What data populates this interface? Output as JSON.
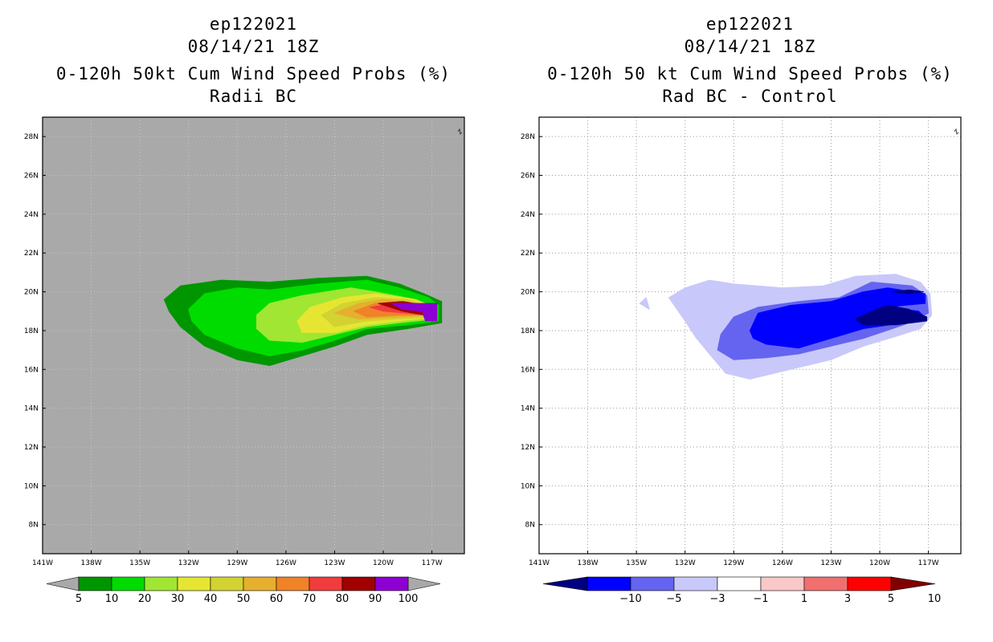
{
  "chart_data": [
    {
      "type": "contour-map",
      "storm": "ep122021",
      "date": "08/14/21 18Z",
      "title": "0-120h 50kt Cum Wind Speed Probs (%)",
      "subtitle": "Radii BC",
      "xlim": [
        -141,
        -115
      ],
      "ylim": [
        6.5,
        29
      ],
      "xticks": [
        "141W",
        "138W",
        "135W",
        "132W",
        "129W",
        "126W",
        "123W",
        "120W",
        "117W"
      ],
      "yticks": [
        "8N",
        "10N",
        "12N",
        "14N",
        "16N",
        "18N",
        "20N",
        "22N",
        "24N",
        "26N",
        "28N"
      ],
      "colorbar": {
        "levels": [
          "5",
          "10",
          "20",
          "30",
          "40",
          "50",
          "60",
          "70",
          "80",
          "90",
          "100"
        ],
        "colors": [
          "#009600",
          "#00dc00",
          "#a0e632",
          "#e6e632",
          "#d2d232",
          "#e6af2d",
          "#f08228",
          "#f03c3c",
          "#a00000",
          "#8c00d2"
        ]
      },
      "background": "#a9a9a9",
      "contours": [
        {
          "level": "5",
          "color": "#009600",
          "points": [
            [
              -133.5,
              19.6
            ],
            [
              -132.5,
              20.3
            ],
            [
              -130,
              20.6
            ],
            [
              -127,
              20.5
            ],
            [
              -124,
              20.7
            ],
            [
              -121,
              20.8
            ],
            [
              -119,
              20.4
            ],
            [
              -117.5,
              19.9
            ],
            [
              -116.4,
              19.5
            ],
            [
              -116.4,
              18.4
            ],
            [
              -118.5,
              18.1
            ],
            [
              -121,
              17.8
            ],
            [
              -123,
              17.2
            ],
            [
              -125,
              16.7
            ],
            [
              -127,
              16.2
            ],
            [
              -129,
              16.5
            ],
            [
              -131,
              17.2
            ],
            [
              -132.5,
              18.2
            ],
            [
              -133.2,
              19.0
            ]
          ]
        },
        {
          "level": "10",
          "color": "#00dc00",
          "points": [
            [
              -132,
              19.1
            ],
            [
              -131,
              19.9
            ],
            [
              -129,
              20.2
            ],
            [
              -127,
              20.1
            ],
            [
              -124,
              20.4
            ],
            [
              -121,
              20.6
            ],
            [
              -119,
              20.2
            ],
            [
              -117.2,
              19.7
            ],
            [
              -116.6,
              19.3
            ],
            [
              -116.6,
              18.5
            ],
            [
              -118.5,
              18.3
            ],
            [
              -121,
              18.1
            ],
            [
              -123,
              17.5
            ],
            [
              -125,
              17.0
            ],
            [
              -127,
              16.7
            ],
            [
              -129,
              17.1
            ],
            [
              -131,
              17.8
            ],
            [
              -131.8,
              18.5
            ]
          ]
        },
        {
          "level": "20",
          "color": "#a0e632",
          "points": [
            [
              -127.8,
              18.8
            ],
            [
              -127,
              19.4
            ],
            [
              -125,
              19.8
            ],
            [
              -122,
              20.2
            ],
            [
              -120.5,
              20.0
            ],
            [
              -118,
              19.6
            ],
            [
              -116.8,
              19.2
            ],
            [
              -116.8,
              18.6
            ],
            [
              -119,
              18.4
            ],
            [
              -121,
              18.2
            ],
            [
              -123,
              17.8
            ],
            [
              -125,
              17.4
            ],
            [
              -127,
              17.5
            ],
            [
              -127.8,
              18.1
            ]
          ]
        },
        {
          "level": "30",
          "color": "#e6e632",
          "points": [
            [
              -125.3,
              18.5
            ],
            [
              -124.5,
              19.2
            ],
            [
              -122.5,
              19.7
            ],
            [
              -120.5,
              19.9
            ],
            [
              -118,
              19.6
            ],
            [
              -116.9,
              19.2
            ],
            [
              -116.9,
              18.7
            ],
            [
              -119,
              18.5
            ],
            [
              -121,
              18.3
            ],
            [
              -123,
              17.9
            ],
            [
              -125,
              17.9
            ]
          ]
        },
        {
          "level": "40",
          "color": "#d2d232",
          "points": [
            [
              -123.8,
              18.8
            ],
            [
              -122.5,
              19.4
            ],
            [
              -120.5,
              19.7
            ],
            [
              -118.5,
              19.6
            ],
            [
              -117,
              19.2
            ],
            [
              -117,
              18.7
            ],
            [
              -119,
              18.6
            ],
            [
              -121,
              18.5
            ],
            [
              -123,
              18.2
            ]
          ]
        },
        {
          "level": "50",
          "color": "#e6af2d",
          "points": [
            [
              -123,
              18.9
            ],
            [
              -121.5,
              19.4
            ],
            [
              -120,
              19.6
            ],
            [
              -118.5,
              19.5
            ],
            [
              -117.1,
              19.2
            ],
            [
              -117.1,
              18.8
            ],
            [
              -119,
              18.7
            ],
            [
              -121.5,
              18.6
            ]
          ]
        },
        {
          "level": "60",
          "color": "#f08228",
          "points": [
            [
              -121.8,
              19.0
            ],
            [
              -120.5,
              19.4
            ],
            [
              -119,
              19.5
            ],
            [
              -117.3,
              19.3
            ],
            [
              -117.3,
              18.8
            ],
            [
              -119,
              18.8
            ],
            [
              -121,
              18.7
            ]
          ]
        },
        {
          "level": "70",
          "color": "#f03c3c",
          "points": [
            [
              -120.8,
              19.2
            ],
            [
              -119.5,
              19.4
            ],
            [
              -118,
              19.4
            ],
            [
              -117.4,
              19.2
            ],
            [
              -117.4,
              18.8
            ],
            [
              -118.5,
              18.9
            ],
            [
              -120,
              19.0
            ]
          ]
        },
        {
          "level": "80",
          "color": "#a00000",
          "points": [
            [
              -120.3,
              19.4
            ],
            [
              -118.8,
              19.5
            ],
            [
              -117.4,
              19.3
            ],
            [
              -117.4,
              18.8
            ],
            [
              -118.8,
              19.0
            ]
          ]
        },
        {
          "level": "90",
          "color": "#8c00d2",
          "points": [
            [
              -119.5,
              19.4
            ],
            [
              -117.4,
              19.4
            ],
            [
              -116.7,
              19.4
            ],
            [
              -116.7,
              18.5
            ],
            [
              -117.4,
              18.5
            ],
            [
              -117.6,
              19.0
            ],
            [
              -118.8,
              19.1
            ]
          ]
        }
      ]
    },
    {
      "type": "contour-map",
      "storm": "ep122021",
      "date": "08/14/21 18Z",
      "title": "0-120h 50 kt Cum Wind Speed Probs (%)",
      "subtitle": "Rad BC - Control",
      "xlim": [
        -141,
        -115
      ],
      "ylim": [
        6.5,
        29
      ],
      "xticks": [
        "141W",
        "138W",
        "135W",
        "132W",
        "129W",
        "126W",
        "123W",
        "120W",
        "117W"
      ],
      "yticks": [
        "8N",
        "10N",
        "12N",
        "14N",
        "16N",
        "18N",
        "20N",
        "22N",
        "24N",
        "26N",
        "28N"
      ],
      "colorbar": {
        "levels": [
          "-10",
          "-5",
          "-3",
          "-1",
          "1",
          "3",
          "5",
          "10"
        ],
        "colors": [
          "#000080",
          "#0000ff",
          "#6464f0",
          "#c8c8fa",
          "#ffffff",
          "#fac8c8",
          "#f07070",
          "#ff0000",
          "#800000"
        ]
      },
      "background": "#ffffff",
      "contours": [
        {
          "level": "-1",
          "color": "#c8c8fa",
          "points": [
            [
              -133,
              19.7
            ],
            [
              -132,
              20.2
            ],
            [
              -130.5,
              20.6
            ],
            [
              -129,
              20.4
            ],
            [
              -126,
              20.2
            ],
            [
              -123.5,
              20.3
            ],
            [
              -121.5,
              20.8
            ],
            [
              -119,
              20.9
            ],
            [
              -117.5,
              20.5
            ],
            [
              -116.9,
              19.9
            ],
            [
              -116.8,
              18.8
            ],
            [
              -117.5,
              18.1
            ],
            [
              -119,
              17.7
            ],
            [
              -121,
              17.2
            ],
            [
              -123,
              16.5
            ],
            [
              -125.5,
              16.0
            ],
            [
              -128,
              15.5
            ],
            [
              -129.5,
              15.8
            ],
            [
              -130.5,
              16.8
            ],
            [
              -131.3,
              17.6
            ],
            [
              -132,
              18.5
            ]
          ]
        },
        {
          "level": "-1",
          "color": "#c8c8fa",
          "points": [
            [
              -134.8,
              19.4
            ],
            [
              -134.2,
              19.1
            ],
            [
              -134.4,
              19.7
            ]
          ]
        },
        {
          "level": "-3",
          "color": "#6464f0",
          "points": [
            [
              -129.8,
              17.8
            ],
            [
              -129,
              18.7
            ],
            [
              -127.5,
              19.2
            ],
            [
              -125,
              19.5
            ],
            [
              -122.5,
              19.7
            ],
            [
              -120.5,
              20.5
            ],
            [
              -118,
              20.3
            ],
            [
              -117.1,
              19.8
            ],
            [
              -117,
              18.9
            ],
            [
              -118.5,
              18.3
            ],
            [
              -121,
              17.6
            ],
            [
              -123,
              17.2
            ],
            [
              -125,
              16.8
            ],
            [
              -127,
              16.6
            ],
            [
              -129,
              16.5
            ],
            [
              -130,
              17.0
            ]
          ]
        },
        {
          "level": "-5",
          "color": "#0000ff",
          "points": [
            [
              -128,
              18.0
            ],
            [
              -127.5,
              18.9
            ],
            [
              -125.5,
              19.3
            ],
            [
              -123,
              19.5
            ],
            [
              -121,
              20.0
            ],
            [
              -119.5,
              20.2
            ],
            [
              -117.2,
              19.9
            ],
            [
              -117.2,
              19.4
            ],
            [
              -118.5,
              19.3
            ],
            [
              -119.5,
              19.2
            ],
            [
              -117.6,
              19.0
            ],
            [
              -117.1,
              18.6
            ],
            [
              -118.5,
              18.4
            ],
            [
              -121,
              18.1
            ],
            [
              -123,
              17.6
            ],
            [
              -125,
              17.1
            ],
            [
              -127,
              17.3
            ],
            [
              -127.8,
              17.6
            ]
          ]
        },
        {
          "level": "-10",
          "color": "#000080",
          "points": [
            [
              -121.5,
              18.6
            ],
            [
              -120.5,
              19.0
            ],
            [
              -119.5,
              19.3
            ],
            [
              -118.2,
              19.1
            ],
            [
              -117.1,
              18.7
            ],
            [
              -117.1,
              18.5
            ],
            [
              -119,
              18.3
            ],
            [
              -121,
              18.3
            ]
          ]
        },
        {
          "level": "-10",
          "color": "#000080",
          "points": [
            [
              -119.2,
              20.0
            ],
            [
              -118.2,
              20.1
            ],
            [
              -117.3,
              20.0
            ],
            [
              -118.3,
              19.9
            ]
          ]
        }
      ]
    }
  ]
}
